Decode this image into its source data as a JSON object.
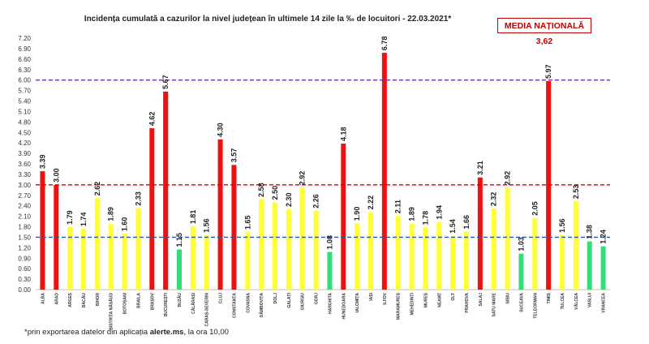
{
  "title": "Incidența cumulată a cazurilor la nivel județean în ultimele 14 zile la ‰ de locuitori - 22.03.2021*",
  "national_average_label": "MEDIA NAȚIONALĂ 3,62",
  "footnote": {
    "prefix": "*prin exportarea datelor din aplicația ",
    "bold": "alerte.ms",
    "suffix": ", la ora 10,00"
  },
  "colors": {
    "red": "#ee1111",
    "yellow": "#ffff33",
    "green": "#33dd77",
    "line_red": "#dd0000",
    "line_purple": "#7030a0",
    "line_blue": "#2f5597"
  },
  "chart_data": {
    "type": "bar",
    "categories": [
      "ALBA",
      "ARAD",
      "ARGEȘ",
      "BACĂU",
      "BIHOR",
      "BISTRIȚA NĂSĂUD",
      "BOTOȘANI",
      "BRAILA",
      "BRAȘOV",
      "BUCUREȘTI",
      "BUZĂU",
      "CĂLĂRAȘI",
      "CARAȘ-SEVERIN",
      "CLUJ",
      "CONSTANȚA",
      "COVASNA",
      "DÂMBOVIȚA",
      "DOLJ",
      "GALAȚI",
      "GIURGIU",
      "GORJ",
      "HARGHITA",
      "HUNEDOARA",
      "IALOMIȚA",
      "IAȘI",
      "ILFOV",
      "MARAMUREȘ",
      "MEHEDINȚI",
      "MUREȘ",
      "NEAMȚ",
      "OLT",
      "PRAHOVA",
      "SALAJ",
      "SATU MARE",
      "SIBIU",
      "SUCEAVA",
      "TELEORMAN",
      "TIMIȘ",
      "TULCEA",
      "VÂLCEA",
      "VASLUI",
      "VRANCEA"
    ],
    "values": [
      3.39,
      3.0,
      1.79,
      1.74,
      2.62,
      1.89,
      1.6,
      2.33,
      4.62,
      5.67,
      1.15,
      1.81,
      1.56,
      4.3,
      3.57,
      1.65,
      2.58,
      2.5,
      2.3,
      2.92,
      2.26,
      1.08,
      4.18,
      1.9,
      2.22,
      6.78,
      2.11,
      1.89,
      1.78,
      1.94,
      1.54,
      1.66,
      3.21,
      2.32,
      2.92,
      1.03,
      2.05,
      5.97,
      1.56,
      2.53,
      1.38,
      1.24
    ],
    "value_labels": [
      "3.39",
      "3.00",
      "1.79",
      "1.74",
      "2.62",
      "1.89",
      "1.60",
      "2.33",
      "4.62",
      "5.67",
      "1.15",
      "1.81",
      "1.56",
      "4.30",
      "3.57",
      "1.65",
      "2.58",
      "2.50",
      "2.30",
      "2.92",
      "2.26",
      "1.08",
      "4.18",
      "1.90",
      "2.22",
      "6.78",
      "2.11",
      "1.89",
      "1.78",
      "1.94",
      "1.54",
      "1.66",
      "3.21",
      "2.32",
      "2.92",
      "1.03",
      "2.05",
      "5.97",
      "1.56",
      "2.53",
      "1.38",
      "1.24"
    ],
    "bar_colors": [
      "red",
      "red",
      "yellow",
      "yellow",
      "yellow",
      "yellow",
      "yellow",
      "yellow",
      "red",
      "red",
      "green",
      "yellow",
      "yellow",
      "red",
      "red",
      "yellow",
      "yellow",
      "yellow",
      "yellow",
      "yellow",
      "yellow",
      "green",
      "red",
      "yellow",
      "yellow",
      "red",
      "yellow",
      "yellow",
      "yellow",
      "yellow",
      "yellow",
      "yellow",
      "red",
      "yellow",
      "yellow",
      "green",
      "yellow",
      "red",
      "yellow",
      "yellow",
      "green",
      "green"
    ],
    "ylim": [
      0,
      7.2
    ],
    "yticks": [
      "0.00",
      "0.30",
      "0.60",
      "0.90",
      "1.20",
      "1.50",
      "1.80",
      "2.10",
      "2.40",
      "2.70",
      "3.00",
      "3.30",
      "3.60",
      "3.90",
      "4.20",
      "4.50",
      "4.80",
      "5.10",
      "5.40",
      "5.70",
      "6.00",
      "6.30",
      "6.60",
      "6.90",
      "7.20"
    ],
    "reference_lines": [
      {
        "value": 6.0,
        "color": "line_purple"
      },
      {
        "value": 3.0,
        "color": "line_red"
      },
      {
        "value": 1.5,
        "color": "line_blue"
      }
    ],
    "grid": false,
    "legend": "none"
  }
}
